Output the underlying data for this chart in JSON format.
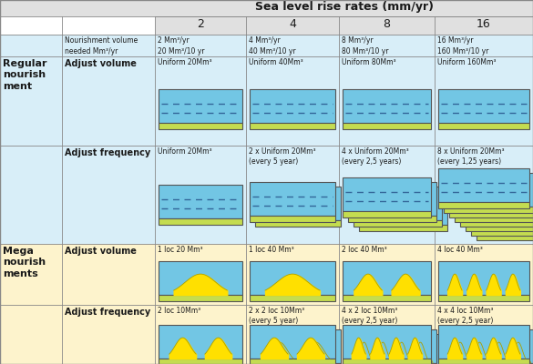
{
  "title": "Sea level rise rates (mm/yr)",
  "col_headers": [
    "2",
    "4",
    "8",
    "16"
  ],
  "nourishment_volumes": [
    "2 Mm³/yr\n20 Mm³/10 yr",
    "4 Mm³/yr\n40 Mm³/10 yr",
    "8 Mm³/yr\n80 Mm³/10 yr",
    "16 Mm³/yr\n160 Mm³/10 yr"
  ],
  "cell_labels_av": [
    "Uniform 20Mm³",
    "Uniform 40Mm³",
    "Uniform 80Mm³",
    "Uniform 160Mm³"
  ],
  "cell_labels_af": [
    "Uniform 20Mm³",
    "2 x Uniform 20Mm³\n(every 5 year)",
    "4 x Uniform 20Mm³\n(every 2,5 years)",
    "8 x Uniform 20Mm³\n(every 1,25 years)"
  ],
  "cell_labels_mav": [
    "1 loc 20 Mm³",
    "1 loc 40 Mm³",
    "2 loc 40 Mm³",
    "4 loc 40 Mm³"
  ],
  "cell_labels_maf": [
    "2 loc 10Mm³",
    "2 x 2 loc 10Mm³\n(every 5 year)",
    "4 x 2 loc 10Mm³\n(every 2,5 year)",
    "4 x 4 loc 10Mm³\n(every 2,5 year)"
  ],
  "bg_blue_light": "#d8eef8",
  "bg_blue_cell": "#72c6e4",
  "bg_green_strip": "#c4dc50",
  "bg_yellow_warm": "#fdf3cc",
  "bg_header_gray": "#e0e0e0",
  "color_black": "#1a1a1a",
  "color_dashed": "#336699",
  "color_yellow": "#ffe000",
  "stacks_af": [
    1,
    2,
    4,
    8
  ],
  "stacks_maf": [
    1,
    2,
    4,
    4
  ],
  "bumps_mav": [
    1,
    1,
    2,
    4
  ],
  "bumps_maf": [
    2,
    2,
    4,
    4
  ]
}
